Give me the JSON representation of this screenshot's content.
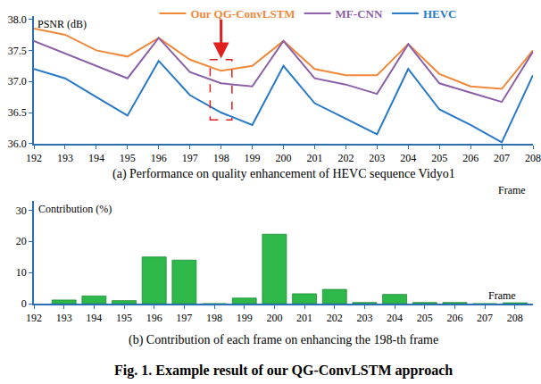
{
  "chart_data": [
    {
      "type": "line",
      "title": "(a) Performance on quality enhancement of HEVC sequence Vidyo1",
      "y_label": "PSNR (dB)",
      "x_label": "Frame",
      "x": [
        192,
        193,
        194,
        195,
        196,
        197,
        198,
        199,
        200,
        201,
        202,
        203,
        204,
        205,
        206,
        207,
        208
      ],
      "series": [
        {
          "name": "Our QG-ConvLSTM",
          "color": "#f0883a",
          "values": [
            37.85,
            37.75,
            37.5,
            37.4,
            37.7,
            37.35,
            37.17,
            37.25,
            37.65,
            37.2,
            37.1,
            37.1,
            37.6,
            37.12,
            36.92,
            36.88,
            37.5
          ]
        },
        {
          "name": "MF-CNN",
          "color": "#8b5fa8",
          "values": [
            37.65,
            37.45,
            37.25,
            37.05,
            37.7,
            37.15,
            36.97,
            36.92,
            37.65,
            37.05,
            36.95,
            36.8,
            37.6,
            36.97,
            36.82,
            36.67,
            37.48
          ]
        },
        {
          "name": "HEVC",
          "color": "#2878c8",
          "values": [
            37.2,
            37.05,
            36.75,
            36.45,
            37.33,
            36.78,
            36.5,
            36.3,
            37.25,
            36.65,
            36.4,
            36.15,
            37.2,
            36.55,
            36.3,
            36.02,
            37.1
          ]
        }
      ],
      "xlim": [
        192,
        208
      ],
      "xticks": [
        192,
        193,
        194,
        195,
        196,
        197,
        198,
        199,
        200,
        201,
        202,
        203,
        204,
        205,
        206,
        207,
        208
      ],
      "ylim": [
        36.0,
        38.05
      ],
      "yticks": [
        {
          "value": 36,
          "label": "36.0"
        },
        {
          "value": 36.5,
          "label": "36.5"
        },
        {
          "value": 37,
          "label": "37.0"
        },
        {
          "value": 37.5,
          "label": "37.5"
        },
        {
          "value": 38,
          "label": "38.0"
        }
      ],
      "highlight": 198,
      "legend": "top",
      "grid": false
    },
    {
      "type": "bar",
      "title": "(b) Contribution of each frame on enhancing the 198-th frame",
      "y_label": "Contribution (%)",
      "x_label": "Frame",
      "x": [
        193,
        194,
        195,
        196,
        197,
        198,
        199,
        200,
        201,
        202,
        203,
        204,
        205,
        206,
        207,
        208
      ],
      "values": [
        1.2,
        2.5,
        1.0,
        15.0,
        14.0,
        0,
        1.8,
        22.3,
        3.2,
        4.6,
        0.4,
        3.0,
        0.4,
        0.4,
        0,
        0.3
      ],
      "color": "#2eb84a",
      "xlim": [
        192,
        208.6
      ],
      "xticks": [
        192,
        193,
        194,
        195,
        196,
        197,
        198,
        199,
        200,
        201,
        202,
        203,
        204,
        205,
        206,
        207,
        208
      ],
      "ylim": [
        0,
        33
      ],
      "yticks": [
        0,
        10,
        20,
        30
      ],
      "grid": false
    }
  ],
  "caption": "Fig. 1. Example result of our QG-ConvLSTM approach"
}
